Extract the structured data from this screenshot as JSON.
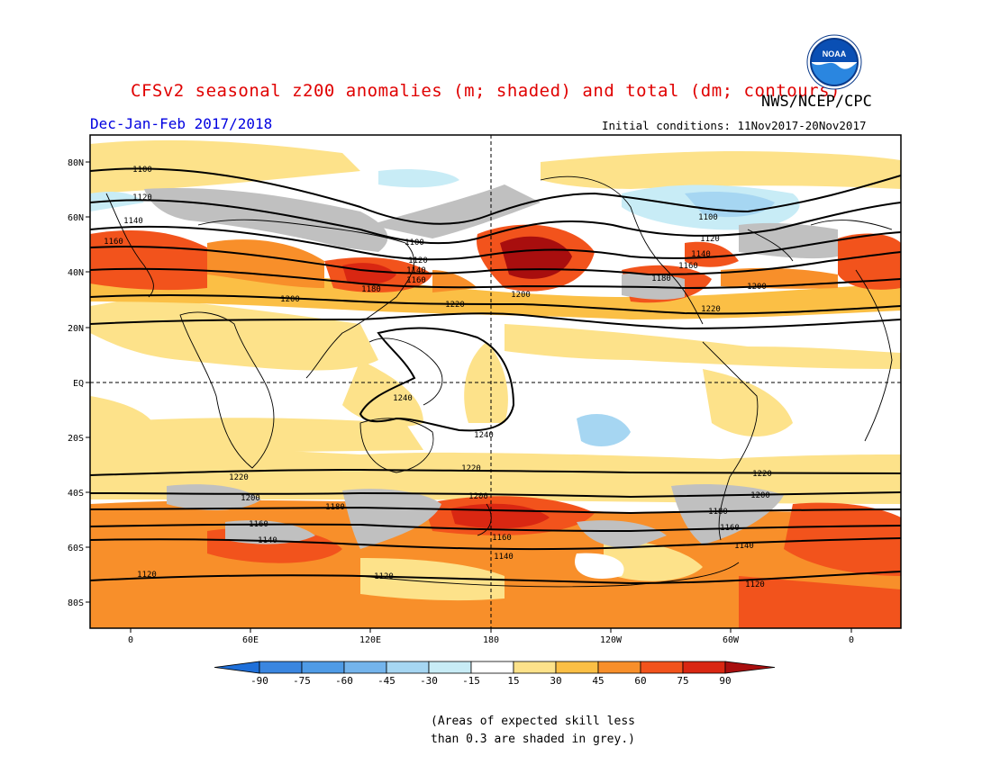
{
  "header": {
    "title": "CFSv2 seasonal z200 anomalies (m; shaded) and total (dm; contours)",
    "season": "Dec-Jan-Feb 2017/2018",
    "agency": "NWS/NCEP/CPC",
    "initial_conditions": "Initial conditions: 11Nov2017-20Nov2017",
    "logo_text": "NOAA"
  },
  "map": {
    "lat_labels": [
      "80N",
      "60N",
      "40N",
      "20N",
      "EQ",
      "20S",
      "40S",
      "60S",
      "80S"
    ],
    "lon_labels": [
      "0",
      "60E",
      "120E",
      "180",
      "120W",
      "60W",
      "0"
    ],
    "contour_labels": [
      {
        "text": "1100"
      },
      {
        "text": "1120"
      },
      {
        "text": "1140"
      },
      {
        "text": "1160"
      },
      {
        "text": "1100"
      },
      {
        "text": "1120"
      },
      {
        "text": "1140"
      },
      {
        "text": "1160"
      },
      {
        "text": "1180"
      },
      {
        "text": "1200"
      },
      {
        "text": "1220"
      },
      {
        "text": "1200"
      },
      {
        "text": "1100"
      },
      {
        "text": "1120"
      },
      {
        "text": "1140"
      },
      {
        "text": "1160"
      },
      {
        "text": "1180"
      },
      {
        "text": "1200"
      },
      {
        "text": "1220"
      },
      {
        "text": "1240"
      },
      {
        "text": "1240"
      },
      {
        "text": "1220"
      },
      {
        "text": "1200"
      },
      {
        "text": "1180"
      },
      {
        "text": "1160"
      },
      {
        "text": "1140"
      },
      {
        "text": "1220"
      },
      {
        "text": "1200"
      },
      {
        "text": "1160"
      },
      {
        "text": "1140"
      },
      {
        "text": "1120"
      },
      {
        "text": "1220"
      },
      {
        "text": "1200"
      },
      {
        "text": "1180"
      },
      {
        "text": "1160"
      },
      {
        "text": "1140"
      },
      {
        "text": "1120"
      },
      {
        "text": "1120"
      }
    ]
  },
  "colorbar": {
    "ticks": [
      "-90",
      "-75",
      "-60",
      "-45",
      "-30",
      "-15",
      "15",
      "30",
      "45",
      "60",
      "75",
      "90"
    ],
    "colors": [
      "#1e6fd9",
      "#3a86e0",
      "#4f9be6",
      "#74b4ec",
      "#a6d6f2",
      "#c8ecf6",
      "#ffffff",
      "#fde28a",
      "#fbbf45",
      "#f88f2a",
      "#f2531c",
      "#d92712",
      "#a80e0e"
    ]
  },
  "note": {
    "line1": "(Areas of expected skill less",
    "line2": "than 0.3 are shaded in grey.)"
  }
}
